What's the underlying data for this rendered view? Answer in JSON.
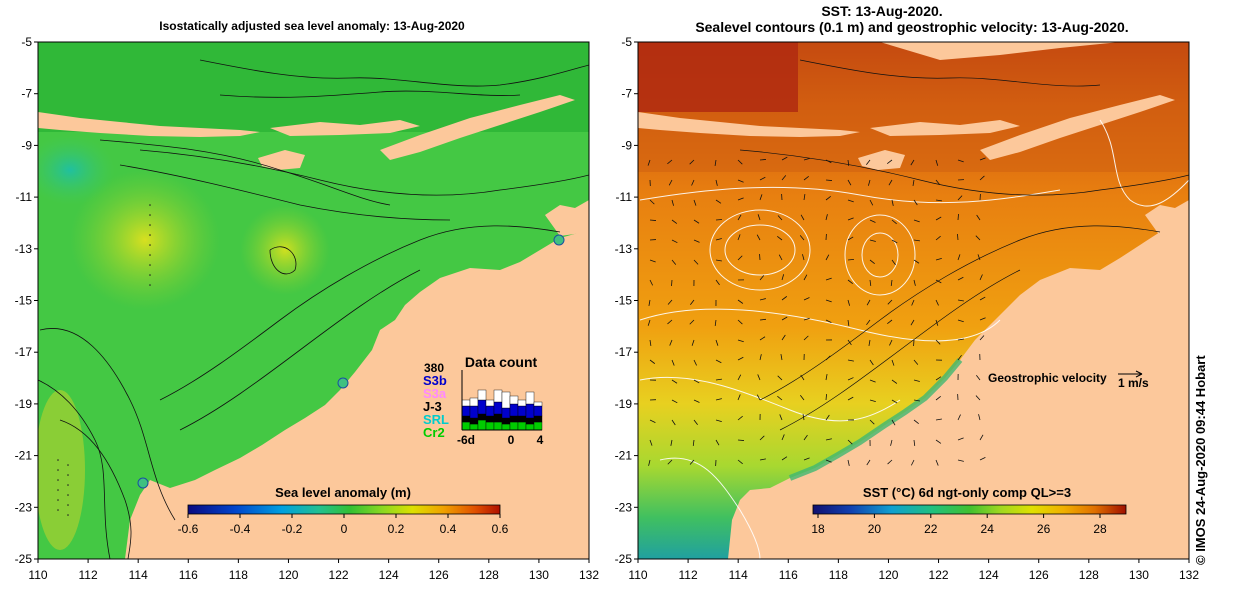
{
  "left_panel": {
    "title": "Isostatically adjusted sea level anomaly: 13-Aug-2020",
    "colorbar": {
      "label": "Sea level anomaly (m)",
      "ticks": [
        "-0.6",
        "-0.4",
        "-0.2",
        "0",
        "0.2",
        "0.4",
        "0.6"
      ],
      "colors": [
        "#0a0a80",
        "#0044cc",
        "#00a0e0",
        "#22c090",
        "#33c033",
        "#88d822",
        "#dde000",
        "#f0a000",
        "#e05000",
        "#b01000"
      ]
    },
    "inset": {
      "title": "Data count",
      "ymax_label": "380",
      "missions": [
        {
          "name": "S3b",
          "color": "#0000cc"
        },
        {
          "name": "S3a",
          "color": "#ff88ff"
        },
        {
          "name": "J-3",
          "color": "#000000"
        },
        {
          "name": "SRL",
          "color": "#00cccc"
        },
        {
          "name": "Cr2",
          "color": "#00cc00"
        }
      ],
      "xticks": [
        "-6d",
        "0",
        "4"
      ]
    }
  },
  "right_panel": {
    "title_line1": "SST: 13-Aug-2020.",
    "title_line2": "Sealevel contours (0.1 m) and geostrophic velocity: 13-Aug-2020.",
    "velocity_label": "Geostrophic velocity",
    "velocity_scale": "1 m/s",
    "colorbar": {
      "label": "SST (°C) 6d ngt-only comp QL>=3",
      "ticks": [
        "18",
        "20",
        "22",
        "24",
        "26",
        "28"
      ],
      "colors": [
        "#101070",
        "#1040b0",
        "#10a0d0",
        "#20c080",
        "#40c030",
        "#a0d820",
        "#e0e000",
        "#f0b000",
        "#e07000",
        "#c03000",
        "#a01000"
      ]
    }
  },
  "axes": {
    "yticks": [
      "-5",
      "-7",
      "-9",
      "-11",
      "-13",
      "-15",
      "-17",
      "-19",
      "-21",
      "-23",
      "-25"
    ],
    "xticks": [
      "110",
      "112",
      "114",
      "116",
      "118",
      "120",
      "122",
      "124",
      "126",
      "128",
      "130",
      "132"
    ]
  },
  "credit": "© IMOS 24-Aug-2020 09:44 Hobart",
  "colors": {
    "land": "#fcc89b",
    "ocean_sla": "#44c844",
    "ocean_sst": "#e89010",
    "sst_hot": "#b83010"
  }
}
